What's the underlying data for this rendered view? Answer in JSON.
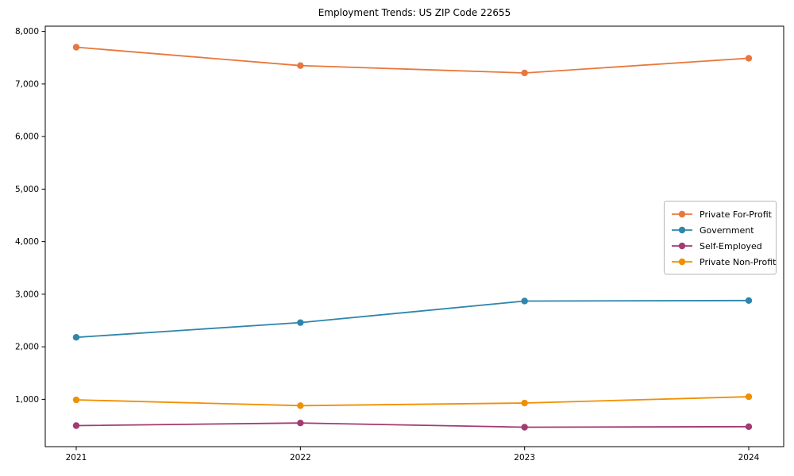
{
  "page": {
    "background_color": "#ffffff",
    "text_color": "#000000",
    "axis_color": "#000000"
  },
  "chart_data": {
    "type": "line",
    "title": "Employment Trends: US ZIP Code 22655",
    "xlabel": "",
    "ylabel": "",
    "grid": false,
    "legend_position": "right",
    "marker": "circle",
    "categories": [
      "2021",
      "2022",
      "2023",
      "2024"
    ],
    "series": [
      {
        "name": "Private For-Profit",
        "color": "#e8773d",
        "values": [
          7700,
          7350,
          7210,
          7490
        ]
      },
      {
        "name": "Government",
        "color": "#2e86ab",
        "values": [
          2180,
          2460,
          2870,
          2880
        ]
      },
      {
        "name": "Self-Employed",
        "color": "#a23b72",
        "values": [
          500,
          550,
          470,
          480
        ]
      },
      {
        "name": "Private Non-Profit",
        "color": "#f18f01",
        "values": [
          990,
          880,
          930,
          1050
        ]
      }
    ],
    "yticks": [
      1000,
      2000,
      3000,
      4000,
      5000,
      6000,
      7000,
      8000
    ],
    "ytick_labels": [
      "1,000",
      "2,000",
      "3,000",
      "4,000",
      "5,000",
      "6,000",
      "7,000",
      "8,000"
    ],
    "ylim": [
      100,
      8100
    ]
  }
}
